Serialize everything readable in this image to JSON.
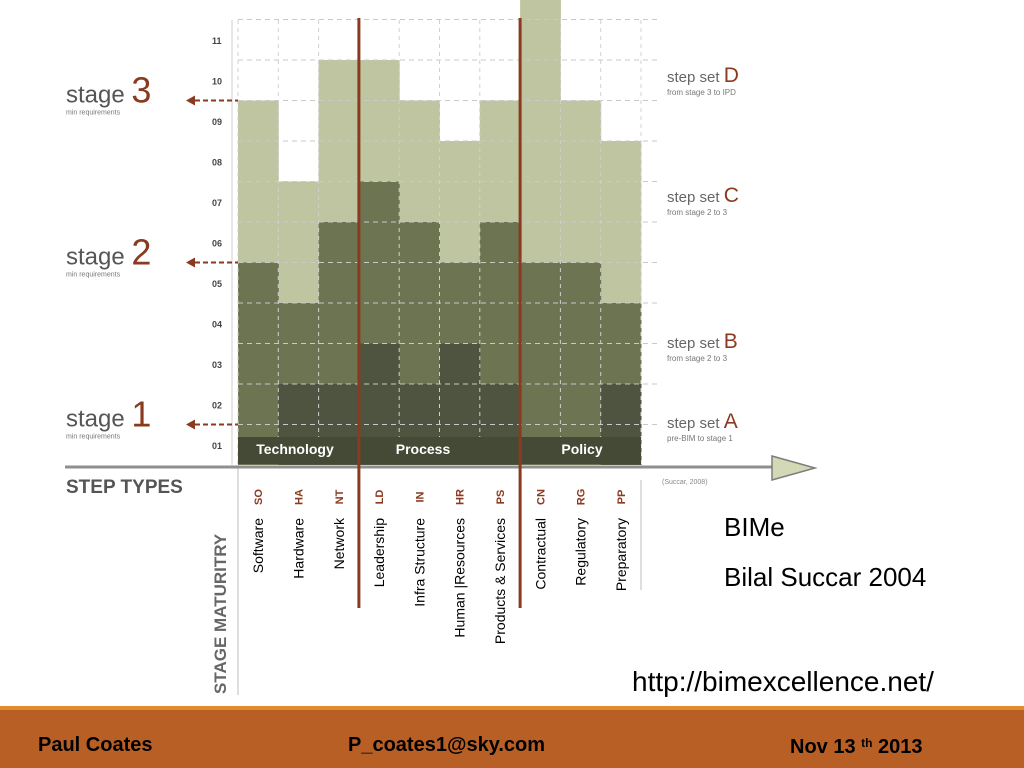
{
  "stages": [
    {
      "word": "stage",
      "num": "3",
      "sub": "min requirements"
    },
    {
      "word": "stage",
      "num": "2",
      "sub": "min requirements"
    },
    {
      "word": "stage",
      "num": "1",
      "sub": "min requirements"
    }
  ],
  "step_sets": [
    {
      "word": "step set",
      "letter": "D",
      "sub": "from stage 3 to IPD"
    },
    {
      "word": "step set",
      "letter": "C",
      "sub": "from stage 2 to 3"
    },
    {
      "word": "step set",
      "letter": "B",
      "sub": "from stage 2 to 3"
    },
    {
      "word": "step set",
      "letter": "A",
      "sub": "pre-BIM to stage 1"
    }
  ],
  "levels": [
    "11",
    "10",
    "09",
    "08",
    "07",
    "06",
    "05",
    "04",
    "03",
    "02",
    "01"
  ],
  "group_labels": [
    "Technology",
    "Process",
    "Policy"
  ],
  "step_types_label": "STEP TYPES",
  "stage_maturity_label": "STAGE MATURITRY",
  "citation": "(Succar, 2008)",
  "columns": [
    {
      "code": "SO",
      "name": "Software"
    },
    {
      "code": "HA",
      "name": "Hardware"
    },
    {
      "code": "NT",
      "name": "Network"
    },
    {
      "code": "LD",
      "name": "Leadership"
    },
    {
      "code": "IN",
      "name": "Infra Structure"
    },
    {
      "code": "HR",
      "name": "Human |Resources"
    },
    {
      "code": "PS",
      "name": "Products & Services"
    },
    {
      "code": "CN",
      "name": "Contractual"
    },
    {
      "code": "RG",
      "name": "Regulatory"
    },
    {
      "code": "PP",
      "name": "Preparatory"
    }
  ],
  "layer_heights": {
    "A": [
      0,
      2,
      2,
      3,
      2,
      3,
      2,
      0,
      0,
      2
    ],
    "B": [
      5,
      4,
      6,
      7,
      6,
      5,
      6,
      5,
      5,
      4
    ],
    "C": [
      9,
      7,
      10,
      10,
      9,
      8,
      9,
      11.5,
      9,
      8
    ]
  },
  "colors": {
    "layerA": "#4f5440",
    "layerB": "#6d7452",
    "layerC": "#bfc5a0",
    "layerFill": "#d5dab8",
    "line": "#8a3a1e",
    "footer": "#b85f26",
    "footerLine": "#e28a2c"
  },
  "slide": {
    "title": "BIMe",
    "author": "Bilal Succar 2004",
    "url": "http://bimexcellence.net/"
  },
  "footer": {
    "author": "Paul Coates",
    "email": "P_coates1@sky.com",
    "date_main": "Nov 13",
    "date_sup": "th",
    "date_year": "2013"
  }
}
